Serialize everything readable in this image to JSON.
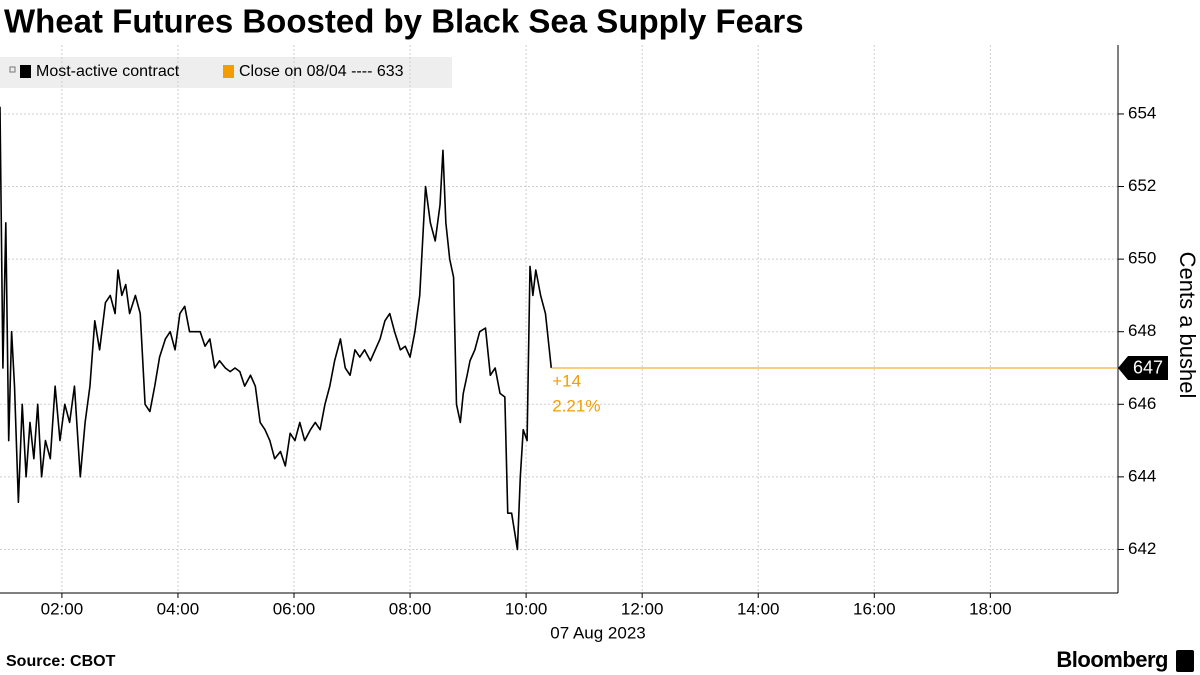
{
  "chart_data": {
    "type": "line",
    "title": "Wheat Futures Boosted by Black Sea Supply Fears",
    "x": [
      "00:56",
      "00:59",
      "01:02",
      "01:05",
      "01:08",
      "01:11",
      "01:15",
      "01:19",
      "01:23",
      "01:27",
      "01:31",
      "01:35",
      "01:39",
      "01:43",
      "01:48",
      "01:53",
      "01:58",
      "02:03",
      "02:08",
      "02:13",
      "02:19",
      "02:24",
      "02:29",
      "02:34",
      "02:39",
      "02:45",
      "02:50",
      "02:55",
      "02:58",
      "03:02",
      "03:06",
      "03:10",
      "03:16",
      "03:21",
      "03:26",
      "03:31",
      "03:36",
      "03:41",
      "03:47",
      "03:52",
      "03:57",
      "04:02",
      "04:07",
      "04:12",
      "04:18",
      "04:23",
      "04:28",
      "04:33",
      "04:38",
      "04:43",
      "04:49",
      "04:54",
      "04:59",
      "05:04",
      "05:09",
      "05:15",
      "05:20",
      "05:25",
      "05:30",
      "05:35",
      "05:40",
      "05:46",
      "05:51",
      "05:56",
      "06:01",
      "06:06",
      "06:11",
      "06:17",
      "06:22",
      "06:27",
      "06:32",
      "06:37",
      "06:42",
      "06:48",
      "06:53",
      "06:58",
      "07:03",
      "07:08",
      "07:13",
      "07:19",
      "07:24",
      "07:29",
      "07:34",
      "07:39",
      "07:44",
      "07:50",
      "07:55",
      "08:00",
      "08:05",
      "08:10",
      "08:16",
      "08:21",
      "08:26",
      "08:31",
      "08:34",
      "08:37",
      "08:41",
      "08:45",
      "08:48",
      "08:52",
      "08:55",
      "08:59",
      "09:02",
      "09:07",
      "09:12",
      "09:18",
      "09:23",
      "09:28",
      "09:33",
      "09:38",
      "09:41",
      "09:45",
      "09:48",
      "09:51",
      "09:54",
      "09:57",
      "10:01",
      "10:04",
      "10:07",
      "10:10",
      "10:15",
      "10:20",
      "10:24",
      "10:26"
    ],
    "series": [
      {
        "name": "Most-active contract",
        "color": "#000000",
        "values": [
          654.2,
          647,
          651,
          645,
          648,
          646.5,
          643.3,
          646,
          644,
          645.5,
          644.5,
          646,
          644,
          645,
          644.5,
          646.5,
          645,
          646,
          645.5,
          646.5,
          644,
          645.5,
          646.5,
          648.3,
          647.5,
          648.8,
          649,
          648.5,
          649.7,
          649,
          649.3,
          648.5,
          649,
          648.5,
          646,
          645.8,
          646.5,
          647.3,
          647.8,
          648,
          647.5,
          648.5,
          648.7,
          648,
          648,
          648,
          647.6,
          647.8,
          647,
          647.2,
          647,
          646.9,
          647,
          646.9,
          646.5,
          646.8,
          646.5,
          645.5,
          645.3,
          645,
          644.5,
          644.7,
          644.3,
          645.2,
          645,
          645.5,
          645,
          645.3,
          645.5,
          645.3,
          646,
          646.5,
          647.2,
          647.8,
          647,
          646.8,
          647.5,
          647.3,
          647.5,
          647.2,
          647.5,
          647.8,
          648.3,
          648.5,
          648,
          647.5,
          647.6,
          647.3,
          648,
          649,
          652,
          651,
          650.5,
          651.5,
          653,
          651,
          650,
          649.5,
          646,
          645.5,
          646.3,
          646.8,
          647.2,
          647.5,
          648,
          648.1,
          646.8,
          647,
          646.3,
          646.2,
          643,
          643,
          642.5,
          642,
          644,
          645.3,
          645,
          649.8,
          649,
          649.7,
          649,
          648.5,
          647.5,
          647
        ]
      }
    ],
    "reference": {
      "name": "Close on 08/04 ---- 633",
      "color": "#f29d00"
    },
    "last_value": 647,
    "annotations": [
      "+14",
      "2.21%"
    ],
    "xlim": [
      "00:56",
      "20:12"
    ],
    "xticks": [
      "02:00",
      "04:00",
      "06:00",
      "08:00",
      "10:00",
      "12:00",
      "14:00",
      "16:00",
      "18:00"
    ],
    "x_label": "07 Aug 2023",
    "ylim": [
      640.8,
      655.9
    ],
    "yticks": [
      642,
      644,
      646,
      648,
      650,
      652,
      654
    ],
    "y_label": "Cents a bushel",
    "y_axis_side": "right",
    "grid": true,
    "source": "Source: CBOT",
    "brand": "Bloomberg"
  }
}
